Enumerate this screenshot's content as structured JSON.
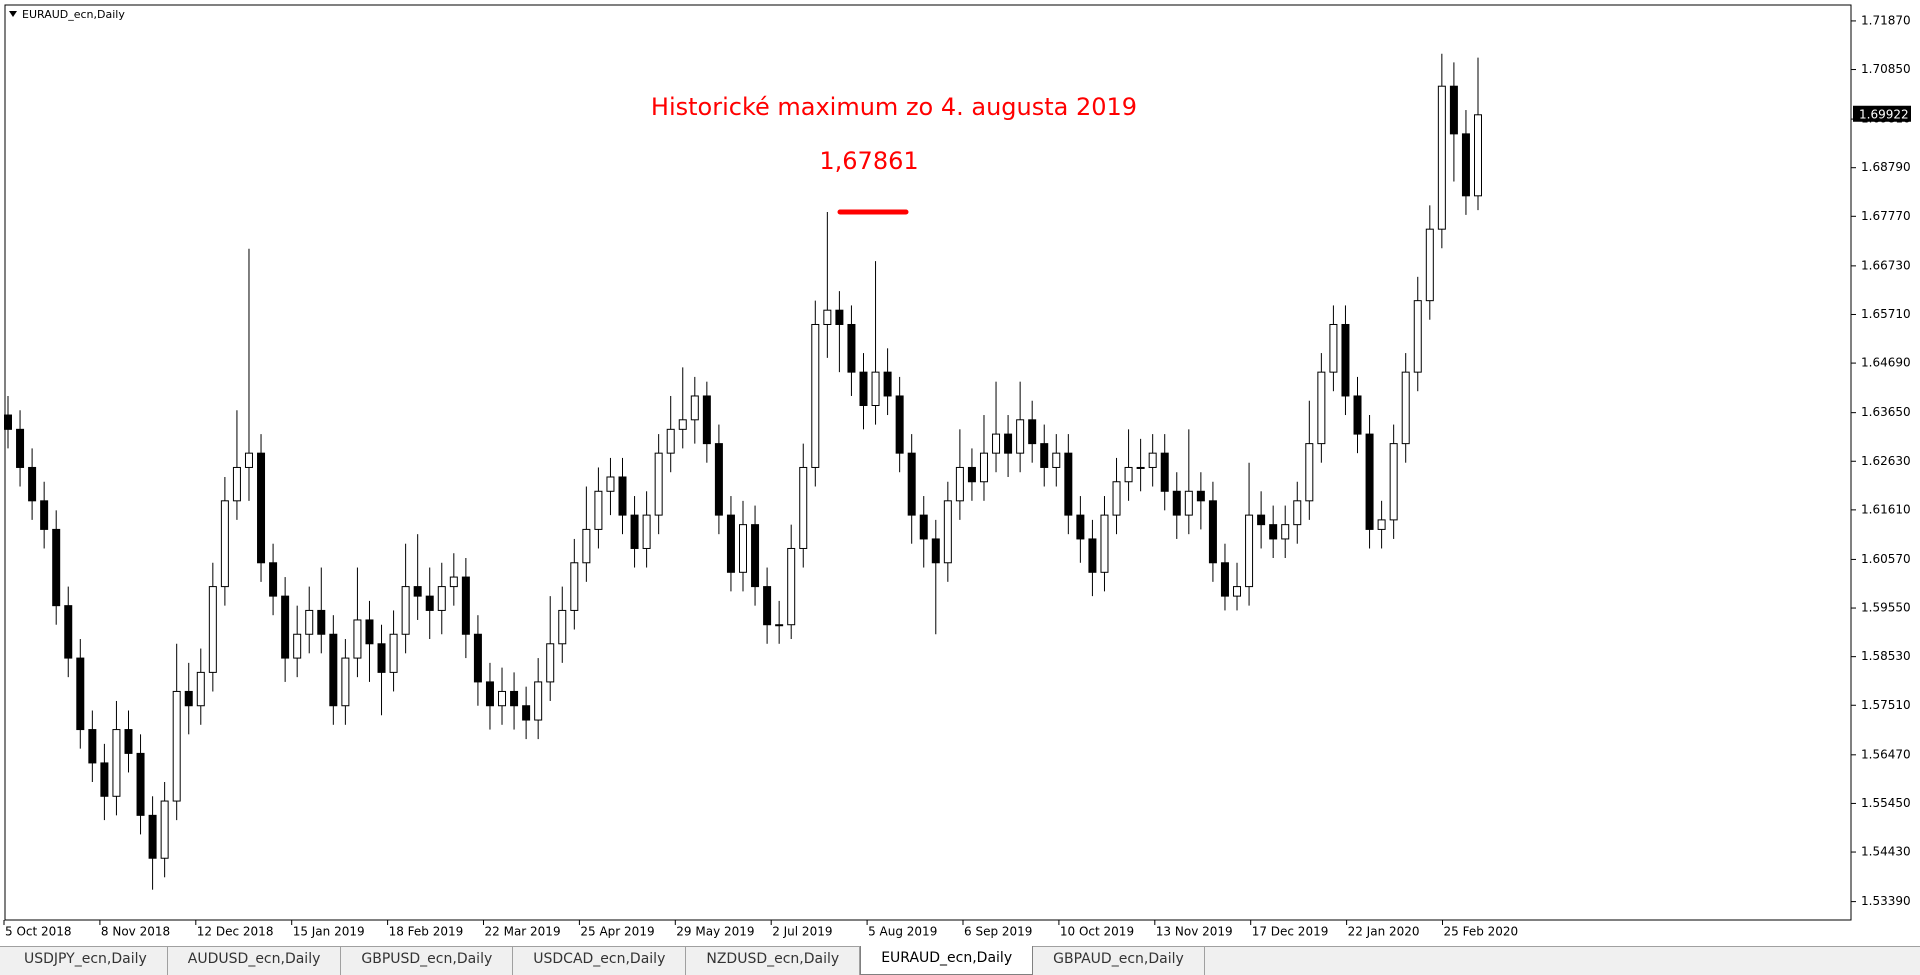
{
  "window": {
    "tabs": [
      "USDJPY_ecn,Daily",
      "AUDUSD_ecn,Daily",
      "GBPUSD_ecn,Daily",
      "USDCAD_ecn,Daily",
      "NZDUSD_ecn,Daily",
      "EURAUD_ecn,Daily",
      "GBPAUD_ecn,Daily"
    ],
    "active_tab": 5
  },
  "chart_data": {
    "type": "candlestick",
    "title": "EURAUD_ecn,Daily",
    "up_color": "#ffffff",
    "down_color": "#000000",
    "wick_color": "#000000",
    "xtick_labels": [
      "5 Oct 2018",
      "8 Nov 2018",
      "12 Dec 2018",
      "15 Jan 2019",
      "18 Feb 2019",
      "22 Mar 2019",
      "25 Apr 2019",
      "29 May 2019",
      "2 Jul 2019",
      "5 Aug 2019",
      "6 Sep 2019",
      "10 Oct 2019",
      "13 Nov 2019",
      "17 Dec 2019",
      "22 Jan 2020",
      "25 Feb 2020"
    ],
    "ylim": [
      1.53004,
      1.72204
    ],
    "yticks": [
      {
        "value": 1.5339,
        "label": "1.53390"
      },
      {
        "value": 1.5443,
        "label": "1.54430"
      },
      {
        "value": 1.5545,
        "label": "1.55450"
      },
      {
        "value": 1.5647,
        "label": "1.56470"
      },
      {
        "value": 1.5751,
        "label": "1.57510"
      },
      {
        "value": 1.5853,
        "label": "1.58530"
      },
      {
        "value": 1.5955,
        "label": "1.59550"
      },
      {
        "value": 1.6057,
        "label": "1.60570"
      },
      {
        "value": 1.6161,
        "label": "1.61610"
      },
      {
        "value": 1.6263,
        "label": "1.62630"
      },
      {
        "value": 1.6365,
        "label": "1.63650"
      },
      {
        "value": 1.6469,
        "label": "1.64690"
      },
      {
        "value": 1.6571,
        "label": "1.65710"
      },
      {
        "value": 1.6673,
        "label": "1.66730"
      },
      {
        "value": 1.6777,
        "label": "1.67770"
      },
      {
        "value": 1.6879,
        "label": "1.68790"
      },
      {
        "value": 1.6981,
        "label": "1.69810"
      },
      {
        "value": 1.7085,
        "label": "1.70850"
      },
      {
        "value": 1.7187,
        "label": "1.71870"
      }
    ],
    "current_price": 1.69922,
    "annotation": {
      "text": "Historické maximum zo 4. augusta 2019",
      "value": 1.67861,
      "label": "1,67861",
      "color": "#ff0000"
    },
    "open": [
      1.636,
      1.633,
      1.625,
      1.618,
      1.612,
      1.596,
      1.585,
      1.57,
      1.563,
      1.556,
      1.57,
      1.565,
      1.552,
      1.543,
      1.555,
      1.578,
      1.575,
      1.582,
      1.6,
      1.618,
      1.625,
      1.628,
      1.605,
      1.598,
      1.585,
      1.59,
      1.595,
      1.59,
      1.575,
      1.585,
      1.593,
      1.588,
      1.582,
      1.59,
      1.6,
      1.598,
      1.595,
      1.6,
      1.602,
      1.59,
      1.58,
      1.575,
      1.578,
      1.575,
      1.572,
      1.58,
      1.588,
      1.595,
      1.605,
      1.612,
      1.62,
      1.623,
      1.615,
      1.608,
      1.615,
      1.628,
      1.633,
      1.635,
      1.64,
      1.63,
      1.615,
      1.603,
      1.613,
      1.6,
      1.592,
      1.592,
      1.608,
      1.625,
      1.655,
      1.658,
      1.655,
      1.645,
      1.638,
      1.645,
      1.64,
      1.628,
      1.615,
      1.61,
      1.605,
      1.618,
      1.625,
      1.622,
      1.628,
      1.632,
      1.628,
      1.635,
      1.63,
      1.625,
      1.628,
      1.615,
      1.61,
      1.603,
      1.615,
      1.622,
      1.625,
      1.625,
      1.628,
      1.62,
      1.615,
      1.62,
      1.618,
      1.605,
      1.598,
      1.6,
      1.615,
      1.613,
      1.61,
      1.613,
      1.618,
      1.63,
      1.645,
      1.655,
      1.64,
      1.632,
      1.612,
      1.614,
      1.63,
      1.645,
      1.66,
      1.675,
      1.705,
      1.695,
      1.682
    ],
    "high": [
      1.64,
      1.637,
      1.629,
      1.622,
      1.616,
      1.6,
      1.589,
      1.574,
      1.567,
      1.576,
      1.574,
      1.569,
      1.556,
      1.559,
      1.588,
      1.584,
      1.587,
      1.605,
      1.623,
      1.637,
      1.6709,
      1.632,
      1.609,
      1.602,
      1.596,
      1.6,
      1.604,
      1.594,
      1.589,
      1.604,
      1.597,
      1.592,
      1.595,
      1.609,
      1.611,
      1.604,
      1.605,
      1.607,
      1.606,
      1.594,
      1.584,
      1.583,
      1.582,
      1.579,
      1.585,
      1.598,
      1.6,
      1.61,
      1.621,
      1.625,
      1.627,
      1.627,
      1.619,
      1.62,
      1.632,
      1.64,
      1.646,
      1.644,
      1.643,
      1.634,
      1.619,
      1.618,
      1.617,
      1.604,
      1.597,
      1.613,
      1.63,
      1.66,
      1.67861,
      1.662,
      1.659,
      1.649,
      1.6683,
      1.65,
      1.644,
      1.632,
      1.619,
      1.614,
      1.622,
      1.633,
      1.629,
      1.636,
      1.643,
      1.636,
      1.643,
      1.639,
      1.634,
      1.632,
      1.632,
      1.619,
      1.614,
      1.619,
      1.627,
      1.633,
      1.631,
      1.632,
      1.632,
      1.624,
      1.633,
      1.624,
      1.622,
      1.609,
      1.605,
      1.626,
      1.62,
      1.617,
      1.617,
      1.622,
      1.639,
      1.649,
      1.659,
      1.659,
      1.644,
      1.636,
      1.618,
      1.634,
      1.649,
      1.665,
      1.68,
      1.7118,
      1.71,
      1.7,
      1.711
    ],
    "low": [
      1.629,
      1.621,
      1.614,
      1.608,
      1.592,
      1.581,
      1.566,
      1.559,
      1.551,
      1.552,
      1.561,
      1.548,
      1.5364,
      1.539,
      1.551,
      1.569,
      1.571,
      1.578,
      1.596,
      1.614,
      1.618,
      1.601,
      1.594,
      1.58,
      1.581,
      1.586,
      1.586,
      1.571,
      1.571,
      1.581,
      1.58,
      1.573,
      1.578,
      1.586,
      1.593,
      1.589,
      1.59,
      1.596,
      1.585,
      1.575,
      1.57,
      1.571,
      1.57,
      1.568,
      1.568,
      1.576,
      1.584,
      1.591,
      1.601,
      1.608,
      1.615,
      1.611,
      1.604,
      1.604,
      1.611,
      1.624,
      1.629,
      1.63,
      1.626,
      1.611,
      1.599,
      1.599,
      1.596,
      1.588,
      1.588,
      1.589,
      1.604,
      1.621,
      1.648,
      1.645,
      1.64,
      1.633,
      1.634,
      1.636,
      1.624,
      1.609,
      1.604,
      1.59,
      1.601,
      1.614,
      1.618,
      1.618,
      1.624,
      1.623,
      1.624,
      1.626,
      1.621,
      1.621,
      1.611,
      1.605,
      1.598,
      1.599,
      1.611,
      1.618,
      1.62,
      1.621,
      1.616,
      1.61,
      1.611,
      1.612,
      1.601,
      1.595,
      1.595,
      1.596,
      1.608,
      1.606,
      1.606,
      1.609,
      1.614,
      1.626,
      1.641,
      1.636,
      1.628,
      1.608,
      1.608,
      1.61,
      1.626,
      1.641,
      1.656,
      1.671,
      1.685,
      1.678,
      1.679
    ],
    "close": [
      1.633,
      1.625,
      1.618,
      1.612,
      1.596,
      1.585,
      1.57,
      1.563,
      1.556,
      1.57,
      1.565,
      1.552,
      1.543,
      1.555,
      1.578,
      1.575,
      1.582,
      1.6,
      1.618,
      1.625,
      1.628,
      1.605,
      1.598,
      1.585,
      1.59,
      1.595,
      1.59,
      1.575,
      1.585,
      1.593,
      1.588,
      1.582,
      1.59,
      1.6,
      1.598,
      1.595,
      1.6,
      1.602,
      1.59,
      1.58,
      1.575,
      1.578,
      1.575,
      1.572,
      1.58,
      1.588,
      1.595,
      1.605,
      1.612,
      1.62,
      1.623,
      1.615,
      1.608,
      1.615,
      1.628,
      1.633,
      1.635,
      1.64,
      1.63,
      1.615,
      1.603,
      1.613,
      1.6,
      1.592,
      1.592,
      1.608,
      1.625,
      1.655,
      1.658,
      1.655,
      1.645,
      1.638,
      1.645,
      1.64,
      1.628,
      1.615,
      1.61,
      1.605,
      1.618,
      1.625,
      1.622,
      1.628,
      1.632,
      1.628,
      1.635,
      1.63,
      1.625,
      1.628,
      1.615,
      1.61,
      1.603,
      1.615,
      1.622,
      1.625,
      1.625,
      1.628,
      1.62,
      1.615,
      1.62,
      1.618,
      1.605,
      1.598,
      1.6,
      1.615,
      1.613,
      1.61,
      1.613,
      1.618,
      1.63,
      1.645,
      1.655,
      1.64,
      1.632,
      1.612,
      1.614,
      1.63,
      1.645,
      1.66,
      1.675,
      1.705,
      1.695,
      1.682,
      1.699
    ]
  }
}
